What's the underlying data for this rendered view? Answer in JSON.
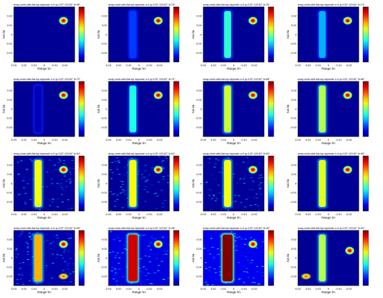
{
  "chart_data": {
    "type": "heatmap",
    "layout": "4x4 grid of imaging panels",
    "colormap": "jet",
    "colorbar_ticks": [
      "",
      "",
      "",
      "",
      ""
    ],
    "xlabel": "Range /m",
    "ylabel": "Azi /m",
    "xticks": [
      "0.03",
      "0.02",
      "0.01",
      "0",
      "-0.01",
      "-0.02"
    ],
    "yticks": [
      "0.02",
      "0.01",
      "0",
      "-0.01",
      "-0.02"
    ],
    "xlim": [
      0.03,
      -0.03
    ],
    "ylim": [
      -0.03,
      0.03
    ],
    "panels": [
      {
        "title": "array-circle-with-flat-top  taylorwin  z=0  φ=120°-129.82°  θ=80°",
        "bar_intensity": 0.0,
        "spot": [
          -0.019,
          0.015
        ],
        "blob": null
      },
      {
        "title": "array-circle-with-flat-top  taylorwin  z=0  φ=120°-129.82°  θ=78°",
        "bar_intensity": 0.18,
        "spot": [
          -0.019,
          0.015
        ],
        "blob": null
      },
      {
        "title": "array-circle-with-flat-top  taylorwin  z=0  φ=120°-129.82°  θ=76°",
        "bar_intensity": 0.42,
        "spot": [
          -0.019,
          0.015
        ],
        "blob": null
      },
      {
        "title": "array-circle-with-flat-top  taylorwin  z=0  φ=120°-129.82°  θ=74°",
        "bar_intensity": 0.3,
        "spot": [
          -0.019,
          0.015
        ],
        "blob": null
      },
      {
        "title": "array-circle-with-flat-top  taylorwin  z=0  φ=120°-129.82°  θ=72°",
        "bar_intensity": 0.05,
        "spot": [
          -0.019,
          0.015
        ],
        "blob": null
      },
      {
        "title": "array-circle-with-flat-top  taylorwin  z=0  φ=120°-129.82°  θ=70°",
        "bar_intensity": 0.4,
        "spot": [
          -0.019,
          0.015
        ],
        "blob": null
      },
      {
        "title": "array-circle-with-flat-top  taylorwin  z=0  φ=120°-129.82°  θ=68°",
        "bar_intensity": 0.58,
        "spot": [
          -0.019,
          0.015
        ],
        "blob": null
      },
      {
        "title": "array-circle-with-flat-top  taylorwin  z=0  φ=120°-129.82°  θ=66°",
        "bar_intensity": 0.55,
        "spot": [
          -0.019,
          0.015
        ],
        "blob": null
      },
      {
        "title": "array-circle-with-flat-top  taylorwin  z=0  φ=120°-129.82°  θ=64°",
        "bar_intensity": 0.62,
        "spot": [
          -0.019,
          0.015
        ],
        "blob": null
      },
      {
        "title": "array-circle-with-flat-top  taylorwin  z=0  φ=120°-129.82°  θ=62°",
        "bar_intensity": 0.62,
        "spot": [
          -0.019,
          0.015
        ],
        "blob": null
      },
      {
        "title": "array-circle-with-flat-top  taylorwin  z=0  φ=120°-129.82°  θ=60°",
        "bar_intensity": 0.62,
        "spot": [
          -0.019,
          0.015
        ],
        "blob": null
      },
      {
        "title": "array-circle-with-flat-top  taylorwin  z=0  φ=120°-129.82°  θ=55°",
        "bar_intensity": 0.6,
        "spot": [
          -0.019,
          0.015
        ],
        "blob": null
      },
      {
        "title": "array-circle-with-flat-top  taylorwin  z=0  φ=120°-129.82°  θ=50°",
        "bar_intensity": 0.7,
        "spot": [
          -0.019,
          0.015
        ],
        "blob": [
          -0.019,
          -0.02
        ]
      },
      {
        "title": "array-circle-with-flat-top  taylorwin  z=0  φ=120°-129.82°  θ=45°",
        "bar_intensity": 0.92,
        "spot": [
          -0.019,
          0.015
        ],
        "blob": null
      },
      {
        "title": "array-circle-with-flat-top  taylorwin  z=0  φ=120°-129.82°  θ=40°",
        "bar_intensity": 1.0,
        "spot": [
          -0.019,
          0.015
        ],
        "blob": null
      },
      {
        "title": "array-circle-with-flat-top  taylorwin  z=0  φ=120°-129.82°  θ=30°",
        "bar_intensity": 0.55,
        "spot": [
          -0.021,
          0.008
        ],
        "blob": [
          0.022,
          -0.02
        ]
      }
    ]
  }
}
